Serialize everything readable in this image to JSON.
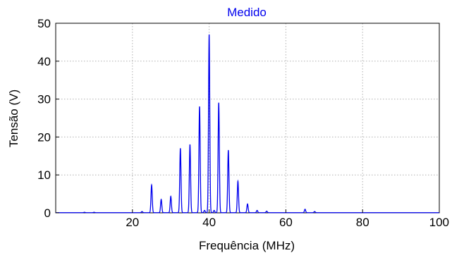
{
  "chart_data": {
    "type": "line",
    "title": "Medido",
    "xlabel": "Frequência (MHz)",
    "ylabel": "Tensão (V)",
    "xlim": [
      0,
      100
    ],
    "ylim": [
      0,
      50
    ],
    "x_ticks": [
      20,
      40,
      60,
      80,
      100
    ],
    "y_ticks": [
      0,
      10,
      20,
      30,
      40,
      50
    ],
    "grid": true,
    "legend": "none",
    "colors": {
      "series": "#0000ee",
      "title": "#0000ee",
      "axis": "#000000",
      "grid": "#b0b0b0"
    },
    "series": [
      {
        "peaks": [
          {
            "x": 7.5,
            "y": 0.1
          },
          {
            "x": 10.0,
            "y": 0.1
          },
          {
            "x": 22.5,
            "y": 0.3
          },
          {
            "x": 25.0,
            "y": 7.3
          },
          {
            "x": 27.5,
            "y": 3.5
          },
          {
            "x": 30.0,
            "y": 4.3
          },
          {
            "x": 32.5,
            "y": 17.0
          },
          {
            "x": 35.0,
            "y": 18.0
          },
          {
            "x": 37.5,
            "y": 28.0
          },
          {
            "x": 38.8,
            "y": 0.6
          },
          {
            "x": 40.0,
            "y": 47.0
          },
          {
            "x": 41.3,
            "y": 0.6
          },
          {
            "x": 42.5,
            "y": 29.0
          },
          {
            "x": 45.0,
            "y": 16.5
          },
          {
            "x": 47.5,
            "y": 8.3
          },
          {
            "x": 50.0,
            "y": 2.3
          },
          {
            "x": 52.5,
            "y": 0.6
          },
          {
            "x": 55.0,
            "y": 0.4
          },
          {
            "x": 65.0,
            "y": 0.9
          },
          {
            "x": 67.5,
            "y": 0.3
          }
        ]
      }
    ]
  }
}
